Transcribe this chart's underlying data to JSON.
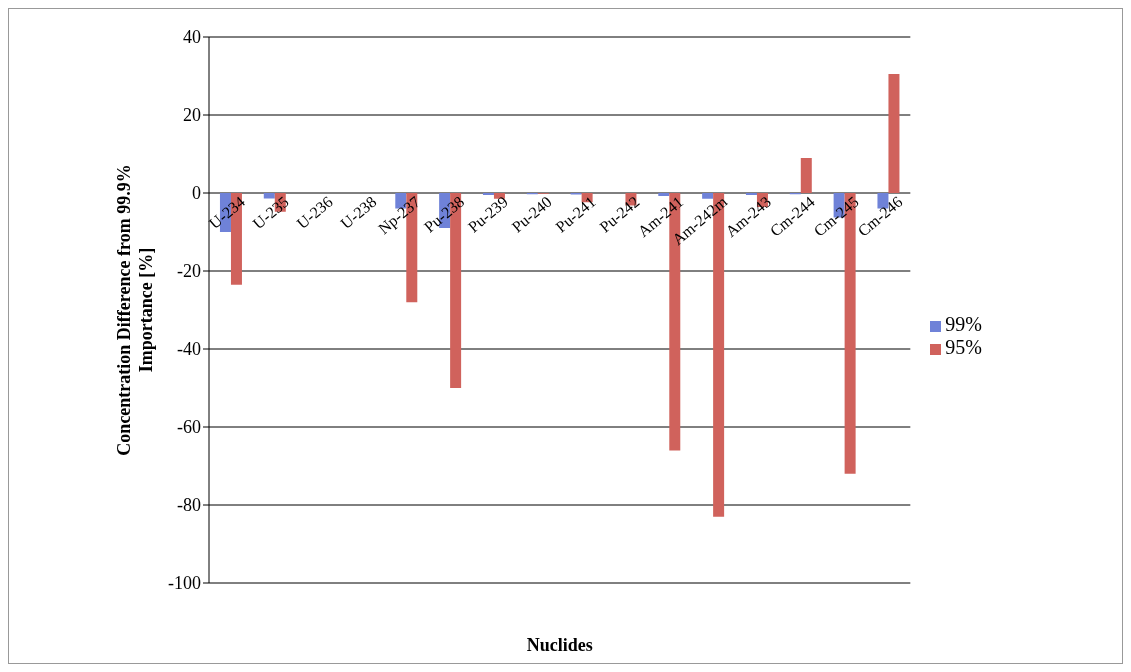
{
  "chart_data": {
    "type": "bar",
    "xlabel": "Nuclides",
    "ylabel": "Concentration Difference from 99.9% Importance [%]",
    "categories": [
      "U-234",
      "U-235",
      "U-236",
      "U-238",
      "Np-237",
      "Pu-238",
      "Pu-239",
      "Pu-240",
      "Pu-241",
      "Pu-242",
      "Am-241",
      "Am-242m",
      "Am-243",
      "Cm-244",
      "Cm-245",
      "Cm-246"
    ],
    "series": [
      {
        "name": "99%",
        "color": "#6f82d8",
        "values": [
          -10,
          -1.4,
          0,
          0,
          -4,
          -9,
          -0.5,
          -0.3,
          -0.4,
          0,
          -0.8,
          -1.5,
          -0.5,
          -0.3,
          -6.3,
          -4
        ]
      },
      {
        "name": "95%",
        "color": "#d0625c",
        "values": [
          -23.5,
          -4.8,
          0,
          0,
          -28,
          -50,
          -1.5,
          -0.2,
          -2.4,
          -3.2,
          -66,
          -83,
          -3.6,
          9,
          -72,
          30.5
        ]
      }
    ],
    "ylim": [
      -100,
      40
    ],
    "yticks": [
      -100,
      -80,
      -60,
      -40,
      -20,
      0,
      20,
      40
    ],
    "grid": "y",
    "legend": "right"
  }
}
